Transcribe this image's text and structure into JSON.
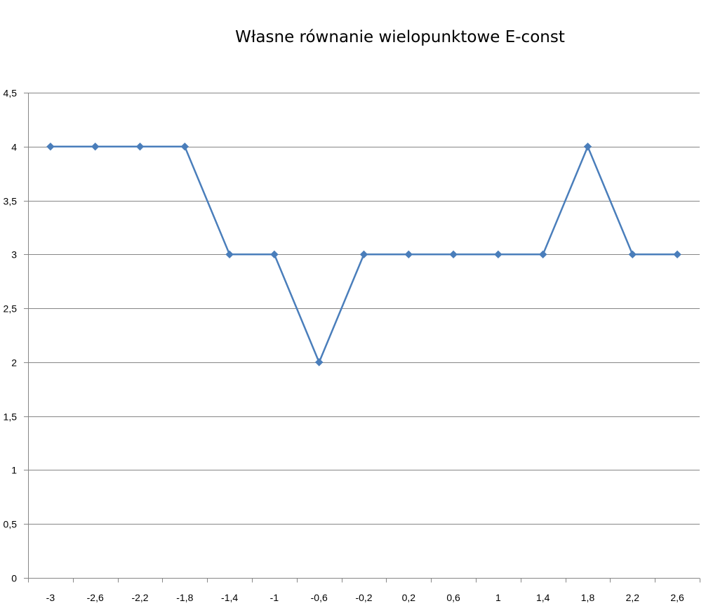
{
  "chart_data": {
    "type": "line",
    "title": "Własne równanie wielopunktowe E-const",
    "xlabel": "",
    "ylabel": "",
    "categories": [
      "-3",
      "-2,6",
      "-2,2",
      "-1,8",
      "-1,4",
      "-1",
      "-0,6",
      "-0,2",
      "0,2",
      "0,6",
      "1",
      "1,4",
      "1,8",
      "2,2",
      "2,6"
    ],
    "y_tick_labels": [
      "0",
      "0,5",
      "1",
      "1,5",
      "2",
      "2,5",
      "3",
      "3,5",
      "4",
      "4,5"
    ],
    "series": [
      {
        "values": [
          4,
          4,
          4,
          4,
          3,
          3,
          2,
          3,
          3,
          3,
          3,
          3,
          4,
          3,
          3
        ],
        "color": "#4a7ebb",
        "marker": "diamond"
      }
    ],
    "ylim": [
      0,
      4.5
    ],
    "y_major_step": 0.5,
    "grid": "horizontal",
    "legend": "none",
    "gridline_color": "#868686",
    "axis_color": "#868686"
  }
}
